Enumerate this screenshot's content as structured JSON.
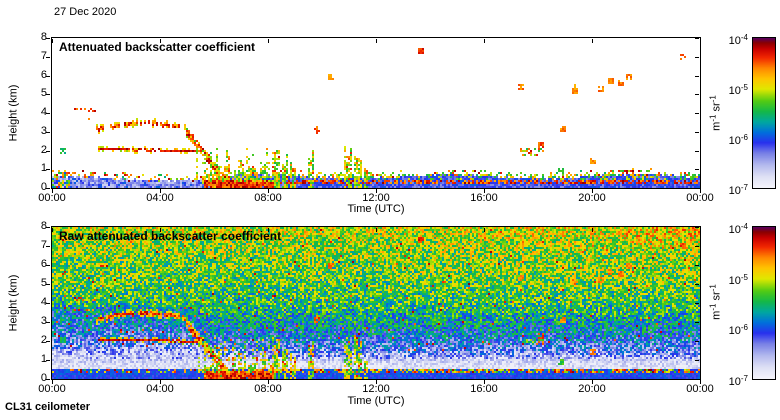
{
  "header": {
    "date": "27 Dec 2020"
  },
  "footer": {
    "instrument": "CL31 ceilometer"
  },
  "colormap_stops": [
    [
      0.0,
      "#f4f4fb"
    ],
    [
      0.07,
      "#e0e2f5"
    ],
    [
      0.15,
      "#b4baee"
    ],
    [
      0.23,
      "#7880e6"
    ],
    [
      0.3,
      "#2830ee"
    ],
    [
      0.37,
      "#0070dc"
    ],
    [
      0.44,
      "#00a8a0"
    ],
    [
      0.51,
      "#14b848"
    ],
    [
      0.58,
      "#52cc14"
    ],
    [
      0.66,
      "#e0e800"
    ],
    [
      0.73,
      "#ffc400"
    ],
    [
      0.8,
      "#ff8800"
    ],
    [
      0.87,
      "#f22800"
    ],
    [
      0.93,
      "#c80000"
    ],
    [
      0.97,
      "#8a0000"
    ],
    [
      1.0,
      "#5a0058"
    ]
  ],
  "shared_features": [
    {
      "type": "dotted_line",
      "t0": 0.85,
      "t1": 1.6,
      "h0": 4.18,
      "h1": 4.08,
      "thick": 0.14,
      "density": 0.7,
      "v0": 0.78,
      "v1": 0.95,
      "jitter": 0.1,
      "arc": 0
    },
    {
      "type": "dotted_line",
      "t0": 1.25,
      "t1": 1.55,
      "h0": 3.62,
      "h1": 3.58,
      "thick": 0.1,
      "density": 0.55,
      "v0": 0.75,
      "v1": 0.9,
      "jitter": 0.06,
      "arc": 0
    },
    {
      "type": "dotted_line",
      "t0": 1.6,
      "t1": 4.95,
      "h0": 3.0,
      "h1": 3.1,
      "arc": 0.3,
      "thick": 0.16,
      "density": 0.8,
      "v0": 0.7,
      "v1": 0.95,
      "jitter": 0.1,
      "fringe": true
    },
    {
      "type": "line",
      "t0": 1.7,
      "t1": 5.35,
      "h0": 2.02,
      "h1": 1.92,
      "thick": 0.12,
      "density": 0.96,
      "v0": 0.85,
      "v1": 0.97,
      "jitter": 0.04,
      "fringe": true
    },
    {
      "type": "descend",
      "t0": 4.95,
      "t1": 6.7,
      "h0": 3.15,
      "h1": 0.05,
      "band": 0.55,
      "density": 0.85
    },
    {
      "type": "surface",
      "t0": 5.65,
      "t1": 8.15,
      "hmax": 0.32,
      "streak_max": 2.1
    },
    {
      "type": "plume",
      "t": 8.3,
      "w": 0.18,
      "hmax": 2.85
    },
    {
      "type": "plume",
      "t": 8.62,
      "w": 0.22,
      "hmax": 1.7
    },
    {
      "type": "plume",
      "t": 8.9,
      "w": 0.16,
      "hmax": 1.45
    },
    {
      "type": "plume",
      "t": 9.58,
      "w": 0.2,
      "hmax": 2.0
    },
    {
      "type": "plume",
      "t": 10.95,
      "w": 0.28,
      "hmax": 2.55
    },
    {
      "type": "plume",
      "t": 11.3,
      "w": 0.3,
      "hmax": 2.3
    },
    {
      "type": "plume",
      "t": 11.62,
      "w": 0.14,
      "hmax": 1.15
    },
    {
      "type": "speck",
      "t": 0.4,
      "h": 1.95,
      "v": 0.5,
      "s": 1
    },
    {
      "type": "speck",
      "t": 9.78,
      "h": 3.0,
      "v": 0.85,
      "s": 1,
      "tall": 0.25
    },
    {
      "type": "speck",
      "t": 10.3,
      "h": 5.9,
      "v": 0.8,
      "s": 1
    },
    {
      "type": "speck",
      "t": 13.6,
      "h": 7.25,
      "v": 0.88,
      "s": 1
    },
    {
      "type": "speck",
      "t": 17.35,
      "h": 5.3,
      "v": 0.8,
      "s": 1
    },
    {
      "type": "speck",
      "t": 18.05,
      "h": 2.2,
      "v": 0.85,
      "s": 1
    },
    {
      "type": "speck",
      "t": 18.8,
      "h": 0.85,
      "v": 0.55,
      "s": 1
    },
    {
      "type": "speck",
      "t": 18.9,
      "h": 3.05,
      "v": 0.8,
      "s": 1
    },
    {
      "type": "speck",
      "t": 19.35,
      "h": 5.1,
      "v": 0.8,
      "s": 1,
      "tall": 0.3
    },
    {
      "type": "speck",
      "t": 20.0,
      "h": 1.35,
      "v": 0.78,
      "s": 1
    },
    {
      "type": "speck",
      "t": 20.3,
      "h": 5.2,
      "v": 0.8,
      "s": 1
    },
    {
      "type": "speck",
      "t": 20.65,
      "h": 5.6,
      "v": 0.8,
      "s": 1
    },
    {
      "type": "speck",
      "t": 21.05,
      "h": 5.5,
      "v": 0.8,
      "s": 1
    },
    {
      "type": "speck",
      "t": 21.35,
      "h": 5.85,
      "v": 0.8,
      "s": 1
    },
    {
      "type": "speck",
      "t": 23.35,
      "h": 6.9,
      "v": 0.86,
      "s": 1
    },
    {
      "type": "cluster",
      "t0": 17.3,
      "t1": 18.15,
      "h0": 1.75,
      "h1": 2.05,
      "density": 0.45
    }
  ],
  "chart_data": [
    {
      "type": "heatmap",
      "title": "Attenuated backscatter coefficient",
      "xlabel": "Time (UTC)",
      "ylabel": "Height (km)",
      "x_ticks": [
        "00:00",
        "04:00",
        "08:00",
        "12:00",
        "16:00",
        "20:00",
        "00:00"
      ],
      "x_hours": [
        0,
        24
      ],
      "y_ticks": [
        "0",
        "1",
        "2",
        "3",
        "4",
        "5",
        "6",
        "7",
        "8"
      ],
      "ylim": [
        0,
        8
      ],
      "background": "clear",
      "aerosol_layer": {
        "top_km": 0.55,
        "stripe_after_h": 6.4,
        "stripe_h": [
          0.2,
          0.48
        ]
      },
      "colorbar": {
        "scale": "log",
        "min": "1e-7",
        "max": "1e-4",
        "ticks": [
          {
            "base": "10",
            "exp": "-4"
          },
          {
            "base": "10",
            "exp": "-5"
          },
          {
            "base": "10",
            "exp": "-6"
          },
          {
            "base": "10",
            "exp": "-7"
          }
        ],
        "unit_parts": [
          {
            "t": "m"
          },
          {
            "t": "-1",
            "sup": true
          },
          {
            "t": " sr"
          },
          {
            "t": "-1",
            "sup": true
          }
        ]
      }
    },
    {
      "type": "heatmap",
      "title": "Raw attenuated backscatter coefficient",
      "xlabel": "Time (UTC)",
      "ylabel": "Height (km)",
      "x_ticks": [
        "00:00",
        "04:00",
        "08:00",
        "12:00",
        "16:00",
        "20:00",
        "00:00"
      ],
      "x_hours": [
        0,
        24
      ],
      "y_ticks": [
        "0",
        "1",
        "2",
        "3",
        "4",
        "5",
        "6",
        "7",
        "8"
      ],
      "ylim": [
        0,
        8
      ],
      "background": "noise",
      "noise_profile": {
        "mean_points": [
          [
            0.56,
            0.07
          ],
          [
            0.8,
            0.08
          ],
          [
            1.0,
            0.12
          ],
          [
            1.3,
            0.22
          ],
          [
            1.8,
            0.31
          ],
          [
            2.4,
            0.39
          ],
          [
            3.0,
            0.45
          ],
          [
            4.0,
            0.51
          ],
          [
            5.0,
            0.56
          ],
          [
            6.5,
            0.6
          ],
          [
            8.0,
            0.63
          ]
        ],
        "bottom_band": {
          "h": 0.3,
          "v": 0.3
        },
        "stripe": {
          "h0": 0.3,
          "h1": 0.56
        }
      },
      "colorbar": {
        "scale": "log",
        "min": "1e-7",
        "max": "1e-4",
        "ticks": [
          {
            "base": "10",
            "exp": "-4"
          },
          {
            "base": "10",
            "exp": "-5"
          },
          {
            "base": "10",
            "exp": "-6"
          },
          {
            "base": "10",
            "exp": "-7"
          }
        ],
        "unit_parts": [
          {
            "t": "m"
          },
          {
            "t": "-1",
            "sup": true
          },
          {
            "t": " sr"
          },
          {
            "t": "-1",
            "sup": true
          }
        ]
      }
    }
  ]
}
